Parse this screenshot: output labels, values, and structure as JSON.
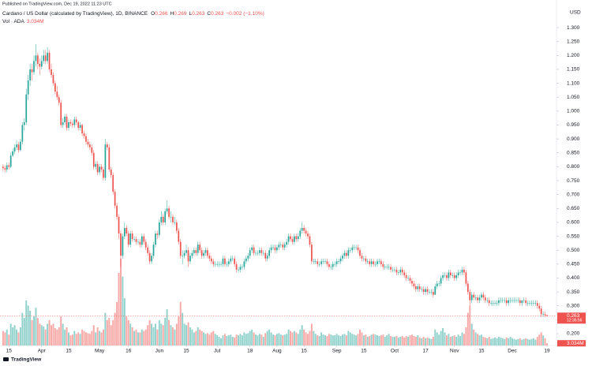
{
  "chart_data": {
    "type": "candlestick",
    "published": "Published on TradingView.com, Dec 19, 2022 11:23 UTC",
    "title": "Cardano / US Dollar (calculated by TradingView), 1D, BINANCE",
    "ohlc_keys": [
      "O",
      "H",
      "L",
      "C"
    ],
    "change_label": "−0.002 (−1.10%)",
    "volume_title": "Vol · ADA",
    "volume_last_label": "3.034M",
    "countdown": "12:36:56",
    "y_unit": "USD",
    "footer": "TradingView",
    "up_color": "#26a69a",
    "down_color": "#ef5350",
    "grid": false,
    "xlim": [
      -1.6,
      286.9
    ],
    "ylim": [
      0.1235,
      1.337
    ],
    "volume_lim": [
      0,
      125
    ],
    "xticks": [
      {
        "value": 3,
        "label": "15"
      },
      {
        "value": 20,
        "label": "Apr"
      },
      {
        "value": 34,
        "label": "15"
      },
      {
        "value": 50,
        "label": "May"
      },
      {
        "value": 65,
        "label": "16"
      },
      {
        "value": 81,
        "label": "Jun"
      },
      {
        "value": 95,
        "label": "15"
      },
      {
        "value": 111,
        "label": "Jul"
      },
      {
        "value": 128,
        "label": "18"
      },
      {
        "value": 142,
        "label": "Aug"
      },
      {
        "value": 156,
        "label": "15"
      },
      {
        "value": 173,
        "label": "Sep"
      },
      {
        "value": 187,
        "label": "15"
      },
      {
        "value": 203,
        "label": "Oct"
      },
      {
        "value": 219,
        "label": "17"
      },
      {
        "value": 234,
        "label": "Nov"
      },
      {
        "value": 248,
        "label": "15"
      },
      {
        "value": 264,
        "label": "Dec"
      },
      {
        "value": 282,
        "label": "19"
      }
    ],
    "yticks": [
      {
        "value": 0.2,
        "label": "0.200"
      },
      {
        "value": 0.25,
        "label": "0.250"
      },
      {
        "value": 0.3,
        "label": "0.300"
      },
      {
        "value": 0.35,
        "label": "0.350"
      },
      {
        "value": 0.4,
        "label": "0.400"
      },
      {
        "value": 0.45,
        "label": "0.450"
      },
      {
        "value": 0.5,
        "label": "0.500"
      },
      {
        "value": 0.55,
        "label": "0.550"
      },
      {
        "value": 0.6,
        "label": "0.600"
      },
      {
        "value": 0.65,
        "label": "0.650"
      },
      {
        "value": 0.7,
        "label": "0.700"
      },
      {
        "value": 0.75,
        "label": "0.750"
      },
      {
        "value": 0.8,
        "label": "0.800"
      },
      {
        "value": 0.85,
        "label": "0.850"
      },
      {
        "value": 0.9,
        "label": "0.900"
      },
      {
        "value": 0.95,
        "label": "0.950"
      },
      {
        "value": 1.0,
        "label": "1.000"
      },
      {
        "value": 1.05,
        "label": "1.050"
      },
      {
        "value": 1.1,
        "label": "1.100"
      },
      {
        "value": 1.15,
        "label": "1.150"
      },
      {
        "value": 1.2,
        "label": "1.200"
      },
      {
        "value": 1.25,
        "label": "1.250"
      },
      {
        "value": 1.3,
        "label": "1.300"
      }
    ],
    "open": [
      0.8,
      0.795,
      0.79,
      0.805,
      0.8,
      0.84,
      0.855,
      0.87,
      0.88,
      0.86,
      0.89,
      0.95,
      0.96,
      1.06,
      1.11,
      1.15,
      1.14,
      1.18,
      1.2,
      1.17,
      1.16,
      1.18,
      1.2,
      1.18,
      1.21,
      1.15,
      1.13,
      1.1,
      1.07,
      1.05,
      1.03,
      0.95,
      0.96,
      0.98,
      0.94,
      0.96,
      0.955,
      0.95,
      0.97,
      0.96,
      0.94,
      0.95,
      0.92,
      0.91,
      0.89,
      0.88,
      0.87,
      0.85,
      0.8,
      0.81,
      0.78,
      0.8,
      0.79,
      0.76,
      0.88,
      0.87,
      0.79,
      0.77,
      0.71,
      0.66,
      0.62,
      0.56,
      0.48,
      0.55,
      0.58,
      0.56,
      0.52,
      0.56,
      0.54,
      0.54,
      0.53,
      0.53,
      0.52,
      0.55,
      0.53,
      0.51,
      0.49,
      0.46,
      0.48,
      0.52,
      0.56,
      0.555,
      0.6,
      0.62,
      0.6,
      0.64,
      0.65,
      0.62,
      0.62,
      0.6,
      0.6,
      0.57,
      0.53,
      0.48,
      0.48,
      0.49,
      0.5,
      0.46,
      0.48,
      0.49,
      0.5,
      0.49,
      0.52,
      0.5,
      0.48,
      0.49,
      0.5,
      0.48,
      0.47,
      0.46,
      0.45,
      0.45,
      0.45,
      0.45,
      0.45,
      0.47,
      0.45,
      0.45,
      0.46,
      0.47,
      0.47,
      0.45,
      0.43,
      0.43,
      0.44,
      0.44,
      0.46,
      0.47,
      0.48,
      0.5,
      0.51,
      0.49,
      0.49,
      0.49,
      0.5,
      0.49,
      0.49,
      0.47,
      0.48,
      0.5,
      0.51,
      0.51,
      0.5,
      0.51,
      0.52,
      0.52,
      0.51,
      0.52,
      0.53,
      0.55,
      0.54,
      0.53,
      0.55,
      0.54,
      0.55,
      0.57,
      0.58,
      0.57,
      0.56,
      0.55,
      0.52,
      0.46,
      0.46,
      0.46,
      0.45,
      0.45,
      0.46,
      0.46,
      0.46,
      0.45,
      0.44,
      0.44,
      0.45,
      0.45,
      0.46,
      0.46,
      0.47,
      0.48,
      0.49,
      0.48,
      0.5,
      0.5,
      0.51,
      0.51,
      0.51,
      0.5,
      0.48,
      0.47,
      0.47,
      0.46,
      0.46,
      0.45,
      0.46,
      0.45,
      0.45,
      0.46,
      0.46,
      0.45,
      0.44,
      0.44,
      0.44,
      0.44,
      0.43,
      0.43,
      0.43,
      0.42,
      0.42,
      0.43,
      0.42,
      0.41,
      0.4,
      0.4,
      0.39,
      0.38,
      0.37,
      0.36,
      0.37,
      0.36,
      0.36,
      0.35,
      0.36,
      0.35,
      0.35,
      0.35,
      0.34,
      0.37,
      0.38,
      0.38,
      0.4,
      0.41,
      0.41,
      0.4,
      0.42,
      0.41,
      0.41,
      0.4,
      0.41,
      0.42,
      0.42,
      0.43,
      0.42,
      0.38,
      0.35,
      0.32,
      0.34,
      0.33,
      0.33,
      0.32,
      0.33,
      0.34,
      0.33,
      0.32,
      0.32,
      0.31,
      0.31,
      0.31,
      0.31,
      0.31,
      0.32,
      0.32,
      0.32,
      0.32,
      0.31,
      0.32,
      0.32,
      0.32,
      0.32,
      0.32,
      0.32,
      0.31,
      0.32,
      0.32,
      0.31,
      0.31,
      0.31,
      0.31,
      0.31,
      0.31,
      0.3,
      0.29,
      0.27,
      0.27,
      0.266
    ],
    "high": [
      0.81,
      0.805,
      0.815,
      0.815,
      0.85,
      0.865,
      0.88,
      0.895,
      0.89,
      0.9,
      0.96,
      0.975,
      1.08,
      1.13,
      1.17,
      1.17,
      1.2,
      1.24,
      1.21,
      1.19,
      1.2,
      1.22,
      1.22,
      1.23,
      1.22,
      1.17,
      1.14,
      1.11,
      1.09,
      1.06,
      1.04,
      0.975,
      0.99,
      0.99,
      0.97,
      0.97,
      0.965,
      0.98,
      0.98,
      0.965,
      0.96,
      0.955,
      0.93,
      0.92,
      0.9,
      0.89,
      0.88,
      0.86,
      0.82,
      0.82,
      0.81,
      0.81,
      0.8,
      0.9,
      0.89,
      0.88,
      0.8,
      0.78,
      0.72,
      0.67,
      0.63,
      0.57,
      0.56,
      0.6,
      0.59,
      0.57,
      0.57,
      0.57,
      0.55,
      0.55,
      0.54,
      0.54,
      0.56,
      0.56,
      0.54,
      0.52,
      0.5,
      0.49,
      0.53,
      0.57,
      0.57,
      0.61,
      0.64,
      0.63,
      0.65,
      0.68,
      0.66,
      0.64,
      0.63,
      0.62,
      0.61,
      0.58,
      0.54,
      0.5,
      0.5,
      0.52,
      0.51,
      0.49,
      0.5,
      0.51,
      0.51,
      0.53,
      0.53,
      0.51,
      0.5,
      0.51,
      0.51,
      0.49,
      0.48,
      0.47,
      0.46,
      0.46,
      0.46,
      0.46,
      0.48,
      0.48,
      0.46,
      0.47,
      0.48,
      0.48,
      0.48,
      0.46,
      0.44,
      0.45,
      0.45,
      0.47,
      0.48,
      0.49,
      0.51,
      0.52,
      0.52,
      0.5,
      0.5,
      0.51,
      0.51,
      0.5,
      0.5,
      0.49,
      0.51,
      0.52,
      0.52,
      0.52,
      0.52,
      0.53,
      0.53,
      0.53,
      0.53,
      0.54,
      0.56,
      0.56,
      0.55,
      0.56,
      0.56,
      0.56,
      0.58,
      0.6,
      0.59,
      0.58,
      0.57,
      0.56,
      0.53,
      0.47,
      0.47,
      0.47,
      0.46,
      0.47,
      0.47,
      0.47,
      0.47,
      0.46,
      0.45,
      0.46,
      0.46,
      0.47,
      0.47,
      0.48,
      0.49,
      0.5,
      0.5,
      0.51,
      0.51,
      0.52,
      0.52,
      0.52,
      0.52,
      0.51,
      0.49,
      0.48,
      0.48,
      0.47,
      0.47,
      0.47,
      0.47,
      0.46,
      0.47,
      0.47,
      0.47,
      0.46,
      0.45,
      0.45,
      0.45,
      0.45,
      0.44,
      0.44,
      0.44,
      0.43,
      0.44,
      0.44,
      0.43,
      0.42,
      0.41,
      0.41,
      0.4,
      0.39,
      0.38,
      0.38,
      0.38,
      0.37,
      0.37,
      0.37,
      0.37,
      0.36,
      0.36,
      0.36,
      0.38,
      0.39,
      0.39,
      0.41,
      0.42,
      0.42,
      0.42,
      0.43,
      0.43,
      0.42,
      0.42,
      0.42,
      0.43,
      0.43,
      0.44,
      0.44,
      0.43,
      0.39,
      0.36,
      0.35,
      0.35,
      0.34,
      0.34,
      0.34,
      0.35,
      0.35,
      0.34,
      0.33,
      0.33,
      0.32,
      0.32,
      0.32,
      0.32,
      0.33,
      0.33,
      0.33,
      0.33,
      0.33,
      0.33,
      0.33,
      0.33,
      0.33,
      0.33,
      0.33,
      0.33,
      0.32,
      0.33,
      0.33,
      0.32,
      0.32,
      0.32,
      0.32,
      0.32,
      0.32,
      0.31,
      0.3,
      0.28,
      0.28,
      0.269
    ],
    "low": [
      0.785,
      0.78,
      0.78,
      0.79,
      0.795,
      0.835,
      0.845,
      0.86,
      0.85,
      0.855,
      0.88,
      0.93,
      0.95,
      1.04,
      1.09,
      1.11,
      1.13,
      1.16,
      1.15,
      1.13,
      1.15,
      1.17,
      1.17,
      1.17,
      1.14,
      1.12,
      1.09,
      1.06,
      1.04,
      1.02,
      0.94,
      0.94,
      0.95,
      0.93,
      0.93,
      0.945,
      0.94,
      0.94,
      0.95,
      0.93,
      0.93,
      0.91,
      0.9,
      0.88,
      0.87,
      0.86,
      0.84,
      0.79,
      0.79,
      0.77,
      0.77,
      0.78,
      0.75,
      0.75,
      0.86,
      0.78,
      0.76,
      0.7,
      0.65,
      0.61,
      0.54,
      0.44,
      0.47,
      0.54,
      0.55,
      0.51,
      0.51,
      0.53,
      0.53,
      0.52,
      0.52,
      0.51,
      0.51,
      0.52,
      0.5,
      0.48,
      0.45,
      0.45,
      0.47,
      0.51,
      0.54,
      0.545,
      0.59,
      0.59,
      0.59,
      0.63,
      0.61,
      0.6,
      0.59,
      0.59,
      0.56,
      0.52,
      0.47,
      0.45,
      0.47,
      0.48,
      0.44,
      0.45,
      0.47,
      0.48,
      0.48,
      0.48,
      0.49,
      0.47,
      0.47,
      0.48,
      0.47,
      0.46,
      0.45,
      0.44,
      0.44,
      0.44,
      0.44,
      0.44,
      0.44,
      0.44,
      0.44,
      0.44,
      0.45,
      0.46,
      0.44,
      0.42,
      0.42,
      0.42,
      0.43,
      0.43,
      0.45,
      0.46,
      0.47,
      0.49,
      0.48,
      0.48,
      0.48,
      0.48,
      0.48,
      0.48,
      0.46,
      0.46,
      0.47,
      0.49,
      0.5,
      0.49,
      0.49,
      0.5,
      0.51,
      0.5,
      0.5,
      0.51,
      0.52,
      0.53,
      0.52,
      0.52,
      0.53,
      0.53,
      0.54,
      0.56,
      0.56,
      0.55,
      0.54,
      0.51,
      0.45,
      0.45,
      0.45,
      0.44,
      0.44,
      0.44,
      0.45,
      0.45,
      0.44,
      0.43,
      0.43,
      0.43,
      0.44,
      0.44,
      0.45,
      0.45,
      0.46,
      0.47,
      0.47,
      0.47,
      0.49,
      0.49,
      0.5,
      0.5,
      0.49,
      0.47,
      0.46,
      0.46,
      0.45,
      0.45,
      0.44,
      0.44,
      0.44,
      0.44,
      0.44,
      0.45,
      0.44,
      0.43,
      0.43,
      0.43,
      0.43,
      0.42,
      0.42,
      0.42,
      0.41,
      0.41,
      0.41,
      0.41,
      0.4,
      0.39,
      0.39,
      0.38,
      0.37,
      0.36,
      0.35,
      0.35,
      0.35,
      0.35,
      0.34,
      0.34,
      0.34,
      0.34,
      0.34,
      0.33,
      0.34,
      0.36,
      0.37,
      0.37,
      0.39,
      0.4,
      0.39,
      0.39,
      0.4,
      0.4,
      0.39,
      0.39,
      0.4,
      0.41,
      0.41,
      0.41,
      0.37,
      0.34,
      0.3,
      0.31,
      0.32,
      0.32,
      0.31,
      0.31,
      0.32,
      0.32,
      0.31,
      0.31,
      0.3,
      0.3,
      0.3,
      0.3,
      0.3,
      0.3,
      0.31,
      0.31,
      0.31,
      0.3,
      0.3,
      0.31,
      0.31,
      0.31,
      0.31,
      0.31,
      0.3,
      0.3,
      0.31,
      0.3,
      0.3,
      0.3,
      0.3,
      0.3,
      0.3,
      0.29,
      0.28,
      0.26,
      0.26,
      0.26,
      0.263
    ],
    "close": [
      0.795,
      0.79,
      0.805,
      0.8,
      0.84,
      0.855,
      0.87,
      0.88,
      0.86,
      0.89,
      0.95,
      0.96,
      1.06,
      1.11,
      1.15,
      1.14,
      1.18,
      1.2,
      1.17,
      1.16,
      1.18,
      1.2,
      1.18,
      1.21,
      1.15,
      1.13,
      1.1,
      1.07,
      1.05,
      1.03,
      0.95,
      0.96,
      0.98,
      0.94,
      0.96,
      0.955,
      0.95,
      0.97,
      0.96,
      0.94,
      0.95,
      0.92,
      0.91,
      0.89,
      0.88,
      0.87,
      0.85,
      0.8,
      0.81,
      0.78,
      0.8,
      0.79,
      0.76,
      0.88,
      0.87,
      0.79,
      0.77,
      0.71,
      0.66,
      0.62,
      0.56,
      0.48,
      0.55,
      0.58,
      0.56,
      0.52,
      0.56,
      0.54,
      0.54,
      0.53,
      0.53,
      0.52,
      0.55,
      0.53,
      0.51,
      0.49,
      0.46,
      0.48,
      0.52,
      0.56,
      0.555,
      0.6,
      0.62,
      0.6,
      0.64,
      0.65,
      0.62,
      0.62,
      0.6,
      0.6,
      0.57,
      0.53,
      0.48,
      0.48,
      0.49,
      0.5,
      0.46,
      0.48,
      0.49,
      0.5,
      0.49,
      0.52,
      0.5,
      0.48,
      0.49,
      0.5,
      0.48,
      0.47,
      0.46,
      0.45,
      0.45,
      0.45,
      0.45,
      0.45,
      0.47,
      0.45,
      0.45,
      0.46,
      0.47,
      0.47,
      0.45,
      0.43,
      0.43,
      0.44,
      0.44,
      0.46,
      0.47,
      0.48,
      0.5,
      0.51,
      0.49,
      0.49,
      0.49,
      0.5,
      0.49,
      0.49,
      0.47,
      0.48,
      0.5,
      0.51,
      0.51,
      0.5,
      0.51,
      0.52,
      0.52,
      0.51,
      0.52,
      0.53,
      0.55,
      0.54,
      0.53,
      0.55,
      0.54,
      0.55,
      0.57,
      0.58,
      0.57,
      0.56,
      0.55,
      0.52,
      0.46,
      0.46,
      0.46,
      0.45,
      0.45,
      0.46,
      0.46,
      0.46,
      0.45,
      0.44,
      0.44,
      0.45,
      0.45,
      0.46,
      0.46,
      0.47,
      0.48,
      0.49,
      0.48,
      0.5,
      0.5,
      0.51,
      0.51,
      0.51,
      0.5,
      0.48,
      0.47,
      0.47,
      0.46,
      0.46,
      0.45,
      0.46,
      0.45,
      0.45,
      0.46,
      0.46,
      0.45,
      0.44,
      0.44,
      0.44,
      0.44,
      0.43,
      0.43,
      0.43,
      0.42,
      0.42,
      0.43,
      0.42,
      0.41,
      0.4,
      0.4,
      0.39,
      0.38,
      0.37,
      0.36,
      0.37,
      0.36,
      0.36,
      0.35,
      0.36,
      0.35,
      0.35,
      0.35,
      0.34,
      0.37,
      0.38,
      0.38,
      0.4,
      0.41,
      0.41,
      0.4,
      0.42,
      0.41,
      0.41,
      0.4,
      0.41,
      0.42,
      0.42,
      0.43,
      0.42,
      0.38,
      0.35,
      0.32,
      0.34,
      0.33,
      0.33,
      0.32,
      0.33,
      0.34,
      0.33,
      0.32,
      0.32,
      0.31,
      0.31,
      0.31,
      0.31,
      0.31,
      0.32,
      0.32,
      0.32,
      0.32,
      0.31,
      0.32,
      0.32,
      0.32,
      0.32,
      0.32,
      0.32,
      0.31,
      0.32,
      0.32,
      0.31,
      0.31,
      0.31,
      0.31,
      0.31,
      0.31,
      0.3,
      0.29,
      0.27,
      0.27,
      0.266,
      0.263
    ],
    "volume": [
      20,
      18,
      22,
      15,
      30,
      25,
      28,
      22,
      18,
      25,
      45,
      38,
      62,
      55,
      48,
      35,
      40,
      52,
      38,
      30,
      28,
      26,
      22,
      30,
      35,
      28,
      30,
      24,
      22,
      25,
      40,
      30,
      22,
      25,
      18,
      14,
      15,
      20,
      16,
      18,
      16,
      22,
      20,
      18,
      17,
      16,
      20,
      28,
      18,
      25,
      20,
      18,
      22,
      45,
      35,
      38,
      28,
      35,
      45,
      60,
      100,
      120,
      95,
      65,
      40,
      35,
      30,
      25,
      20,
      22,
      18,
      18,
      22,
      20,
      22,
      28,
      35,
      30,
      25,
      30,
      22,
      35,
      30,
      28,
      38,
      50,
      35,
      28,
      25,
      22,
      30,
      40,
      60,
      45,
      30,
      28,
      32,
      25,
      22,
      18,
      20,
      25,
      22,
      20,
      18,
      16,
      17,
      15,
      18,
      20,
      16,
      14,
      12,
      10,
      14,
      16,
      13,
      14,
      15,
      12,
      11,
      15,
      14,
      16,
      14,
      18,
      16,
      17,
      20,
      22,
      18,
      15,
      14,
      16,
      15,
      12,
      17,
      20,
      22,
      18,
      15,
      14,
      16,
      17,
      15,
      14,
      15,
      16,
      22,
      20,
      18,
      20,
      18,
      16,
      22,
      28,
      22,
      18,
      16,
      20,
      30,
      20,
      16,
      14,
      13,
      18,
      15,
      14,
      13,
      16,
      15,
      14,
      14,
      16,
      14,
      13,
      15,
      16,
      14,
      20,
      18,
      16,
      15,
      14,
      16,
      22,
      18,
      14,
      15,
      12,
      13,
      15,
      16,
      15,
      14,
      13,
      14,
      15,
      12,
      14,
      16,
      13,
      12,
      12,
      13,
      11,
      12,
      13,
      11,
      13,
      12,
      14,
      15,
      13,
      12,
      14,
      11,
      10,
      12,
      10,
      11,
      10,
      9,
      12,
      22,
      18,
      15,
      20,
      24,
      18,
      14,
      16,
      12,
      13,
      14,
      12,
      15,
      13,
      18,
      16,
      25,
      45,
      55,
      30,
      22,
      18,
      16,
      14,
      15,
      12,
      11,
      10,
      12,
      9,
      10,
      11,
      10,
      12,
      11,
      10,
      9,
      11,
      10,
      12,
      10,
      9,
      8,
      9,
      10,
      8,
      9,
      10,
      9,
      8,
      9,
      10,
      8,
      12,
      15,
      18,
      14,
      10,
      3.034
    ]
  }
}
